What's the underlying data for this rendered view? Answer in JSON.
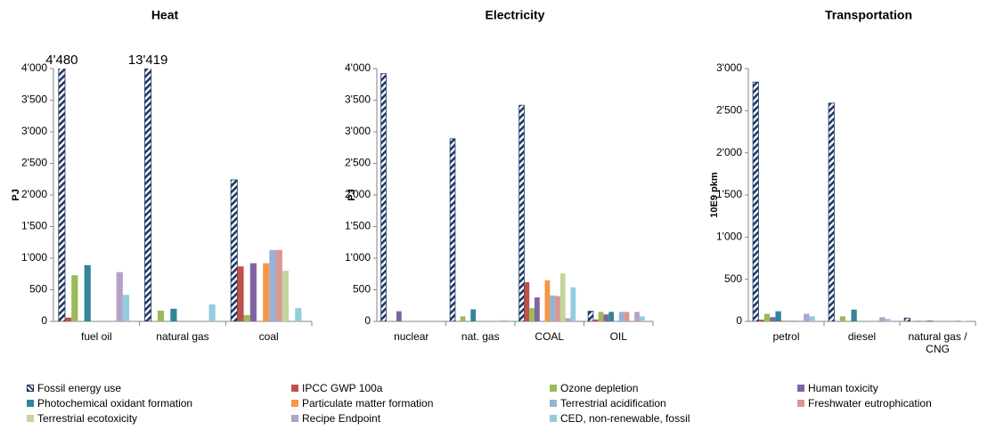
{
  "legend": [
    {
      "name": "Fossil energy use",
      "color": "#1f3864",
      "hatch": true
    },
    {
      "name": "IPCC GWP 100a",
      "color": "#c0504d"
    },
    {
      "name": "Ozone depletion",
      "color": "#9bbb59"
    },
    {
      "name": "Human toxicity",
      "color": "#8064a2"
    },
    {
      "name": "Photochemical oxidant formation",
      "color": "#31859c"
    },
    {
      "name": "Particulate matter formation",
      "color": "#f79646"
    },
    {
      "name": "Terrestrial acidification",
      "color": "#95b3d7"
    },
    {
      "name": "Freshwater eutrophication",
      "color": "#d99694"
    },
    {
      "name": "Terrestrial ecotoxicity",
      "color": "#c3d69b"
    },
    {
      "name": "Recipe Endpoint",
      "color": "#b3a2c7"
    },
    {
      "name": "CED, non-renewable, fossil",
      "color": "#93cddd"
    }
  ],
  "chart_data": [
    {
      "type": "bar",
      "title": "Heat",
      "y_label": "PJ",
      "categories": [
        "fuel oil",
        "natural gas",
        "coal"
      ],
      "ylim": [
        0,
        4000
      ],
      "yticks": [
        0,
        500,
        {
          "value": 1000,
          "label": "1'000"
        },
        {
          "value": 1500,
          "label": "1'500"
        },
        {
          "value": 2000,
          "label": "2'000"
        },
        {
          "value": 2500,
          "label": "2'500"
        },
        {
          "value": 3000,
          "label": "3'000"
        },
        {
          "value": 3500,
          "label": "3'500"
        },
        {
          "value": 4000,
          "label": "4'000"
        }
      ],
      "series": [
        {
          "values": [
            4480,
            13419,
            2240
          ],
          "value_labels": [
            "4'480",
            "13'419",
            null
          ]
        },
        {
          "values": [
            60,
            0,
            870
          ]
        },
        {
          "values": [
            730,
            170,
            100
          ]
        },
        {
          "values": [
            0,
            0,
            920
          ]
        },
        {
          "values": [
            890,
            200,
            0
          ]
        },
        {
          "values": [
            0,
            0,
            920
          ]
        },
        {
          "values": [
            0,
            0,
            1130
          ]
        },
        {
          "values": [
            0,
            0,
            1130
          ]
        },
        {
          "values": [
            0,
            0,
            800
          ]
        },
        {
          "values": [
            780,
            0,
            0
          ]
        },
        {
          "values": [
            420,
            270,
            210
          ]
        }
      ]
    },
    {
      "type": "bar",
      "title": "Electricity",
      "y_label": "PJ",
      "categories": [
        "nuclear",
        "nat. gas",
        "COAL",
        "OIL"
      ],
      "ylim": [
        0,
        4000
      ],
      "yticks": [
        0,
        500,
        {
          "value": 1000,
          "label": "1'000"
        },
        {
          "value": 1500,
          "label": "1'500"
        },
        {
          "value": 2000,
          "label": "2'000"
        },
        {
          "value": 2500,
          "label": "2'500"
        },
        {
          "value": 3000,
          "label": "3'000"
        },
        {
          "value": 3500,
          "label": "3'500"
        },
        {
          "value": 4000,
          "label": "4'000"
        }
      ],
      "series": [
        {
          "values": [
            3920,
            2890,
            3420,
            160
          ]
        },
        {
          "values": [
            0,
            0,
            620,
            30
          ]
        },
        {
          "values": [
            0,
            80,
            210,
            150
          ]
        },
        {
          "values": [
            160,
            0,
            380,
            110
          ]
        },
        {
          "values": [
            0,
            190,
            0,
            150
          ]
        },
        {
          "values": [
            0,
            0,
            650,
            0
          ]
        },
        {
          "values": [
            0,
            0,
            410,
            150
          ]
        },
        {
          "values": [
            0,
            0,
            400,
            150
          ]
        },
        {
          "values": [
            0,
            0,
            760,
            0
          ]
        },
        {
          "values": [
            0,
            0,
            50,
            150
          ]
        },
        {
          "values": [
            0,
            20,
            540,
            80
          ]
        }
      ]
    },
    {
      "type": "bar",
      "title": "Transportation",
      "y_label": "10E9 pkm",
      "categories": [
        "petrol",
        "diesel",
        "natural gas / CNG"
      ],
      "ylim": [
        0,
        3000
      ],
      "yticks": [
        0,
        500,
        {
          "value": 1000,
          "label": "1'000"
        },
        {
          "value": 1500,
          "label": "1'500"
        },
        {
          "value": 2000,
          "label": "2'000"
        },
        {
          "value": 2500,
          "label": "2'500"
        },
        {
          "value": 3000,
          "label": "3'000"
        }
      ],
      "series": [
        {
          "values": [
            2840,
            2590,
            40
          ]
        },
        {
          "values": [
            20,
            0,
            0
          ]
        },
        {
          "values": [
            90,
            60,
            10
          ]
        },
        {
          "values": [
            50,
            0,
            0
          ]
        },
        {
          "values": [
            120,
            140,
            10
          ]
        },
        {
          "values": [
            10,
            0,
            0
          ]
        },
        {
          "values": [
            10,
            0,
            0
          ]
        },
        {
          "values": [
            10,
            0,
            0
          ]
        },
        {
          "values": [
            0,
            0,
            0
          ]
        },
        {
          "values": [
            90,
            50,
            10
          ]
        },
        {
          "values": [
            60,
            30,
            5
          ]
        }
      ]
    }
  ]
}
